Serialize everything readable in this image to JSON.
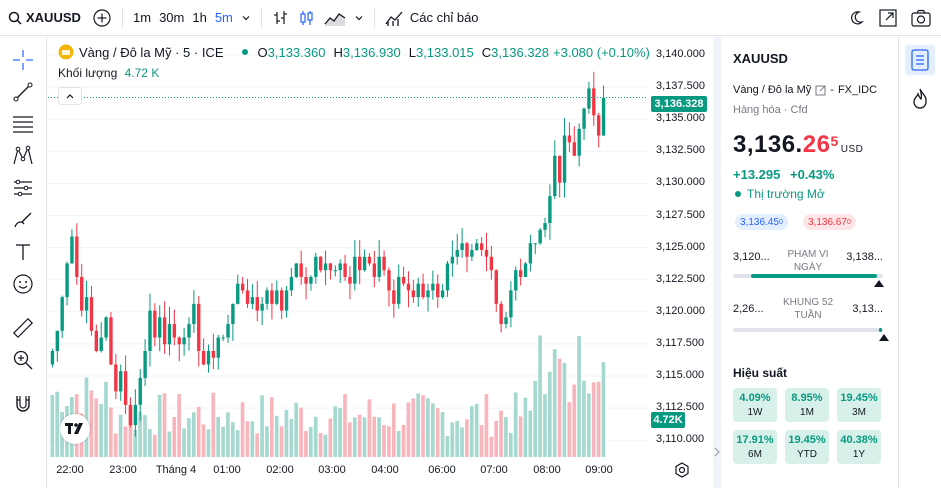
{
  "toolbar": {
    "symbol": "XAUUSD",
    "intervals": [
      "1m",
      "30m",
      "1h",
      "5m"
    ],
    "active_interval": "5m",
    "indicators_label": "Các chỉ báo"
  },
  "legend": {
    "title": "Vàng / Đô la Mỹ · 5 · ICE",
    "o_label": "O",
    "o": "3,133.360",
    "h_label": "H",
    "h": "3,136.930",
    "l_label": "L",
    "l": "3,133.015",
    "c_label": "C",
    "c": "3,136.328",
    "change": "+3.080 (+0.10%)",
    "volume_label": "Khối lượng",
    "volume_value": "4.72 K"
  },
  "price_axis": {
    "ticks": [
      "3,140.000",
      "3,137.500",
      "3,135.000",
      "3,132.500",
      "3,130.000",
      "3,127.500",
      "3,125.000",
      "3,122.500",
      "3,120.000",
      "3,117.500",
      "3,115.000",
      "3,112.500",
      "3,110.000"
    ],
    "last_price": "3,136.328",
    "last_volume": "4.72K"
  },
  "time_axis": {
    "ticks": [
      "22:00",
      "23:00",
      "Tháng 4",
      "01:00",
      "02:00",
      "03:00",
      "04:00",
      "06:00",
      "07:00",
      "08:00",
      "09:00"
    ]
  },
  "colors": {
    "up": "#089981",
    "down": "#f23645",
    "up_vol": "#a5d9cf",
    "down_vol": "#f7b6bc",
    "accent": "#2962ff"
  },
  "chart_data": {
    "type": "candlestick",
    "interval": "5",
    "ylim": [
      3110,
      3140
    ],
    "x": [
      "22:00",
      "23:00",
      "Tháng 4",
      "01:00",
      "02:00",
      "03:00",
      "04:00",
      "06:00",
      "07:00",
      "08:00",
      "09:00"
    ],
    "close_series": [
      3117.5,
      3119.0,
      3121.5,
      3124.0,
      3126.0,
      3123.0,
      3120.5,
      3121.5,
      3119.0,
      3117.5,
      3118.5,
      3120.0,
      3116.5,
      3114.5,
      3116.0,
      3113.5,
      3112.0,
      3113.5,
      3115.5,
      3117.5,
      3120.5,
      3118.5,
      3120.0,
      3118.0,
      3119.5,
      3118.5,
      3118.0,
      3118.5,
      3119.5,
      3121.0,
      3117.5,
      3116.5,
      3117.5,
      3117.0,
      3118.5,
      3118.5,
      3119.5,
      3121.0,
      3122.5,
      3122.0,
      3121.0,
      3121.5,
      3120.5,
      3121.0,
      3122.0,
      3121.0,
      3122.0,
      3120.5,
      3122.0,
      3123.0,
      3124.0,
      3123.0,
      3122.5,
      3123.0,
      3124.5,
      3123.5,
      3124.0,
      3123.5,
      3123.5,
      3124.0,
      3123.0,
      3122.5,
      3124.5,
      3123.5,
      3124.5,
      3124.0,
      3123.0,
      3124.5,
      3123.5,
      3122.0,
      3121.0,
      3123.0,
      3122.5,
      3122.0,
      3121.5,
      3122.5,
      3121.5,
      3122.0,
      3122.5,
      3121.5,
      3122.0,
      3124.0,
      3124.5,
      3125.0,
      3125.5,
      3124.5,
      3125.0,
      3125.5,
      3125.0,
      3124.5,
      3123.5,
      3121.0,
      3119.5,
      3120.0,
      3122.0,
      3123.5,
      3123.0,
      3124.0,
      3125.5,
      3125.5,
      3126.5,
      3127.0,
      3129.0,
      3132.0,
      3130.0,
      3133.5,
      3133.0,
      3132.0,
      3134.0,
      3135.5,
      3137.0,
      3135.0,
      3133.5,
      3136.3
    ],
    "high": 3137.8,
    "low": 3111.5,
    "last": 3136.328,
    "open": 3133.36,
    "high_last": 3136.93,
    "low_last": 3133.015,
    "volume_last": "4.72K"
  },
  "panel": {
    "symbol": "XAUUSD",
    "description": "Vàng / Đô la Mỹ",
    "source": "FX_IDC",
    "category": "Hàng hóa",
    "type": "Cfd",
    "price_main": "3,136.",
    "price_red": "26",
    "price_sup": "5",
    "currency": "USD",
    "change": "+13.295",
    "change_pct": "+0.43%",
    "market_status": "Thị trường Mở",
    "bid": "3,136.45",
    "bid_sup": "0",
    "ask": "3,136.67",
    "ask_sup": "0",
    "day_range": {
      "low": "3,120...",
      "label": "PHẠM VI NGÀY",
      "high": "3,138...",
      "position": 0.96
    },
    "week52": {
      "low": "2,26...",
      "label": "KHUNG 52 TUẦN",
      "high": "3,13...",
      "position": 0.99
    },
    "performance_title": "Hiệu suất",
    "performance": [
      {
        "value": "4.09%",
        "label": "1W"
      },
      {
        "value": "8.95%",
        "label": "1M"
      },
      {
        "value": "19.45%",
        "label": "3M"
      },
      {
        "value": "17.91%",
        "label": "6M"
      },
      {
        "value": "19.45%",
        "label": "YTD"
      },
      {
        "value": "40.38%",
        "label": "1Y"
      }
    ]
  }
}
